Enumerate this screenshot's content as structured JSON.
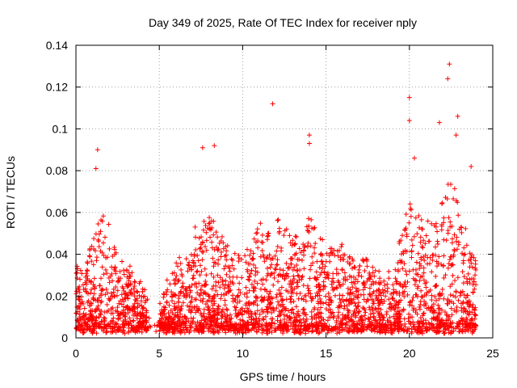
{
  "chart_data": {
    "type": "scatter",
    "title": "Day 349 of 2025, Rate Of TEC Index for receiver nply",
    "xlabel": "GPS time / hours",
    "ylabel": "ROTI / TECUs",
    "xlim": [
      0,
      25
    ],
    "ylim": [
      0,
      0.14
    ],
    "xticks": [
      "0",
      "5",
      "10",
      "15",
      "20",
      "25"
    ],
    "yticks": [
      "0",
      "0.02",
      "0.04",
      "0.06",
      "0.08",
      "0.1",
      "0.12",
      "0.14"
    ],
    "grid": true,
    "marker": "+",
    "color": "#ff0000",
    "notable_points": [
      {
        "x": 11.8,
        "y": 0.112
      },
      {
        "x": 22.4,
        "y": 0.131
      },
      {
        "x": 20.0,
        "y": 0.115
      },
      {
        "x": 22.3,
        "y": 0.124
      },
      {
        "x": 8.3,
        "y": 0.092
      },
      {
        "x": 7.6,
        "y": 0.091
      },
      {
        "x": 1.3,
        "y": 0.09
      },
      {
        "x": 1.2,
        "y": 0.081
      },
      {
        "x": 14.0,
        "y": 0.097
      },
      {
        "x": 14.0,
        "y": 0.093
      },
      {
        "x": 21.8,
        "y": 0.103
      },
      {
        "x": 22.9,
        "y": 0.106
      },
      {
        "x": 20.0,
        "y": 0.104
      },
      {
        "x": 22.8,
        "y": 0.097
      },
      {
        "x": 20.3,
        "y": 0.086
      },
      {
        "x": 23.7,
        "y": 0.082
      }
    ],
    "density_profile": {
      "hours": [
        0,
        0.5,
        1,
        1.5,
        2,
        2.5,
        3,
        3.5,
        4,
        4.5,
        5,
        5.5,
        6,
        6.5,
        7,
        7.5,
        8,
        8.5,
        9,
        9.5,
        10,
        10.5,
        11,
        11.5,
        12,
        12.5,
        13,
        13.5,
        14,
        14.5,
        15,
        15.5,
        16,
        16.5,
        17,
        17.5,
        18,
        18.5,
        19,
        19.5,
        20,
        20.5,
        21,
        21.5,
        22,
        22.5,
        23,
        23.5,
        24
      ],
      "upper_envelope": [
        0.035,
        0.03,
        0.05,
        0.06,
        0.055,
        0.04,
        0.035,
        0.03,
        0.025,
        0.02,
        0.015,
        0.03,
        0.035,
        0.04,
        0.05,
        0.055,
        0.06,
        0.05,
        0.045,
        0.04,
        0.04,
        0.05,
        0.055,
        0.05,
        0.06,
        0.055,
        0.05,
        0.05,
        0.06,
        0.05,
        0.05,
        0.045,
        0.045,
        0.04,
        0.04,
        0.04,
        0.035,
        0.03,
        0.035,
        0.05,
        0.065,
        0.06,
        0.055,
        0.055,
        0.07,
        0.075,
        0.065,
        0.05,
        0.035
      ]
    }
  }
}
